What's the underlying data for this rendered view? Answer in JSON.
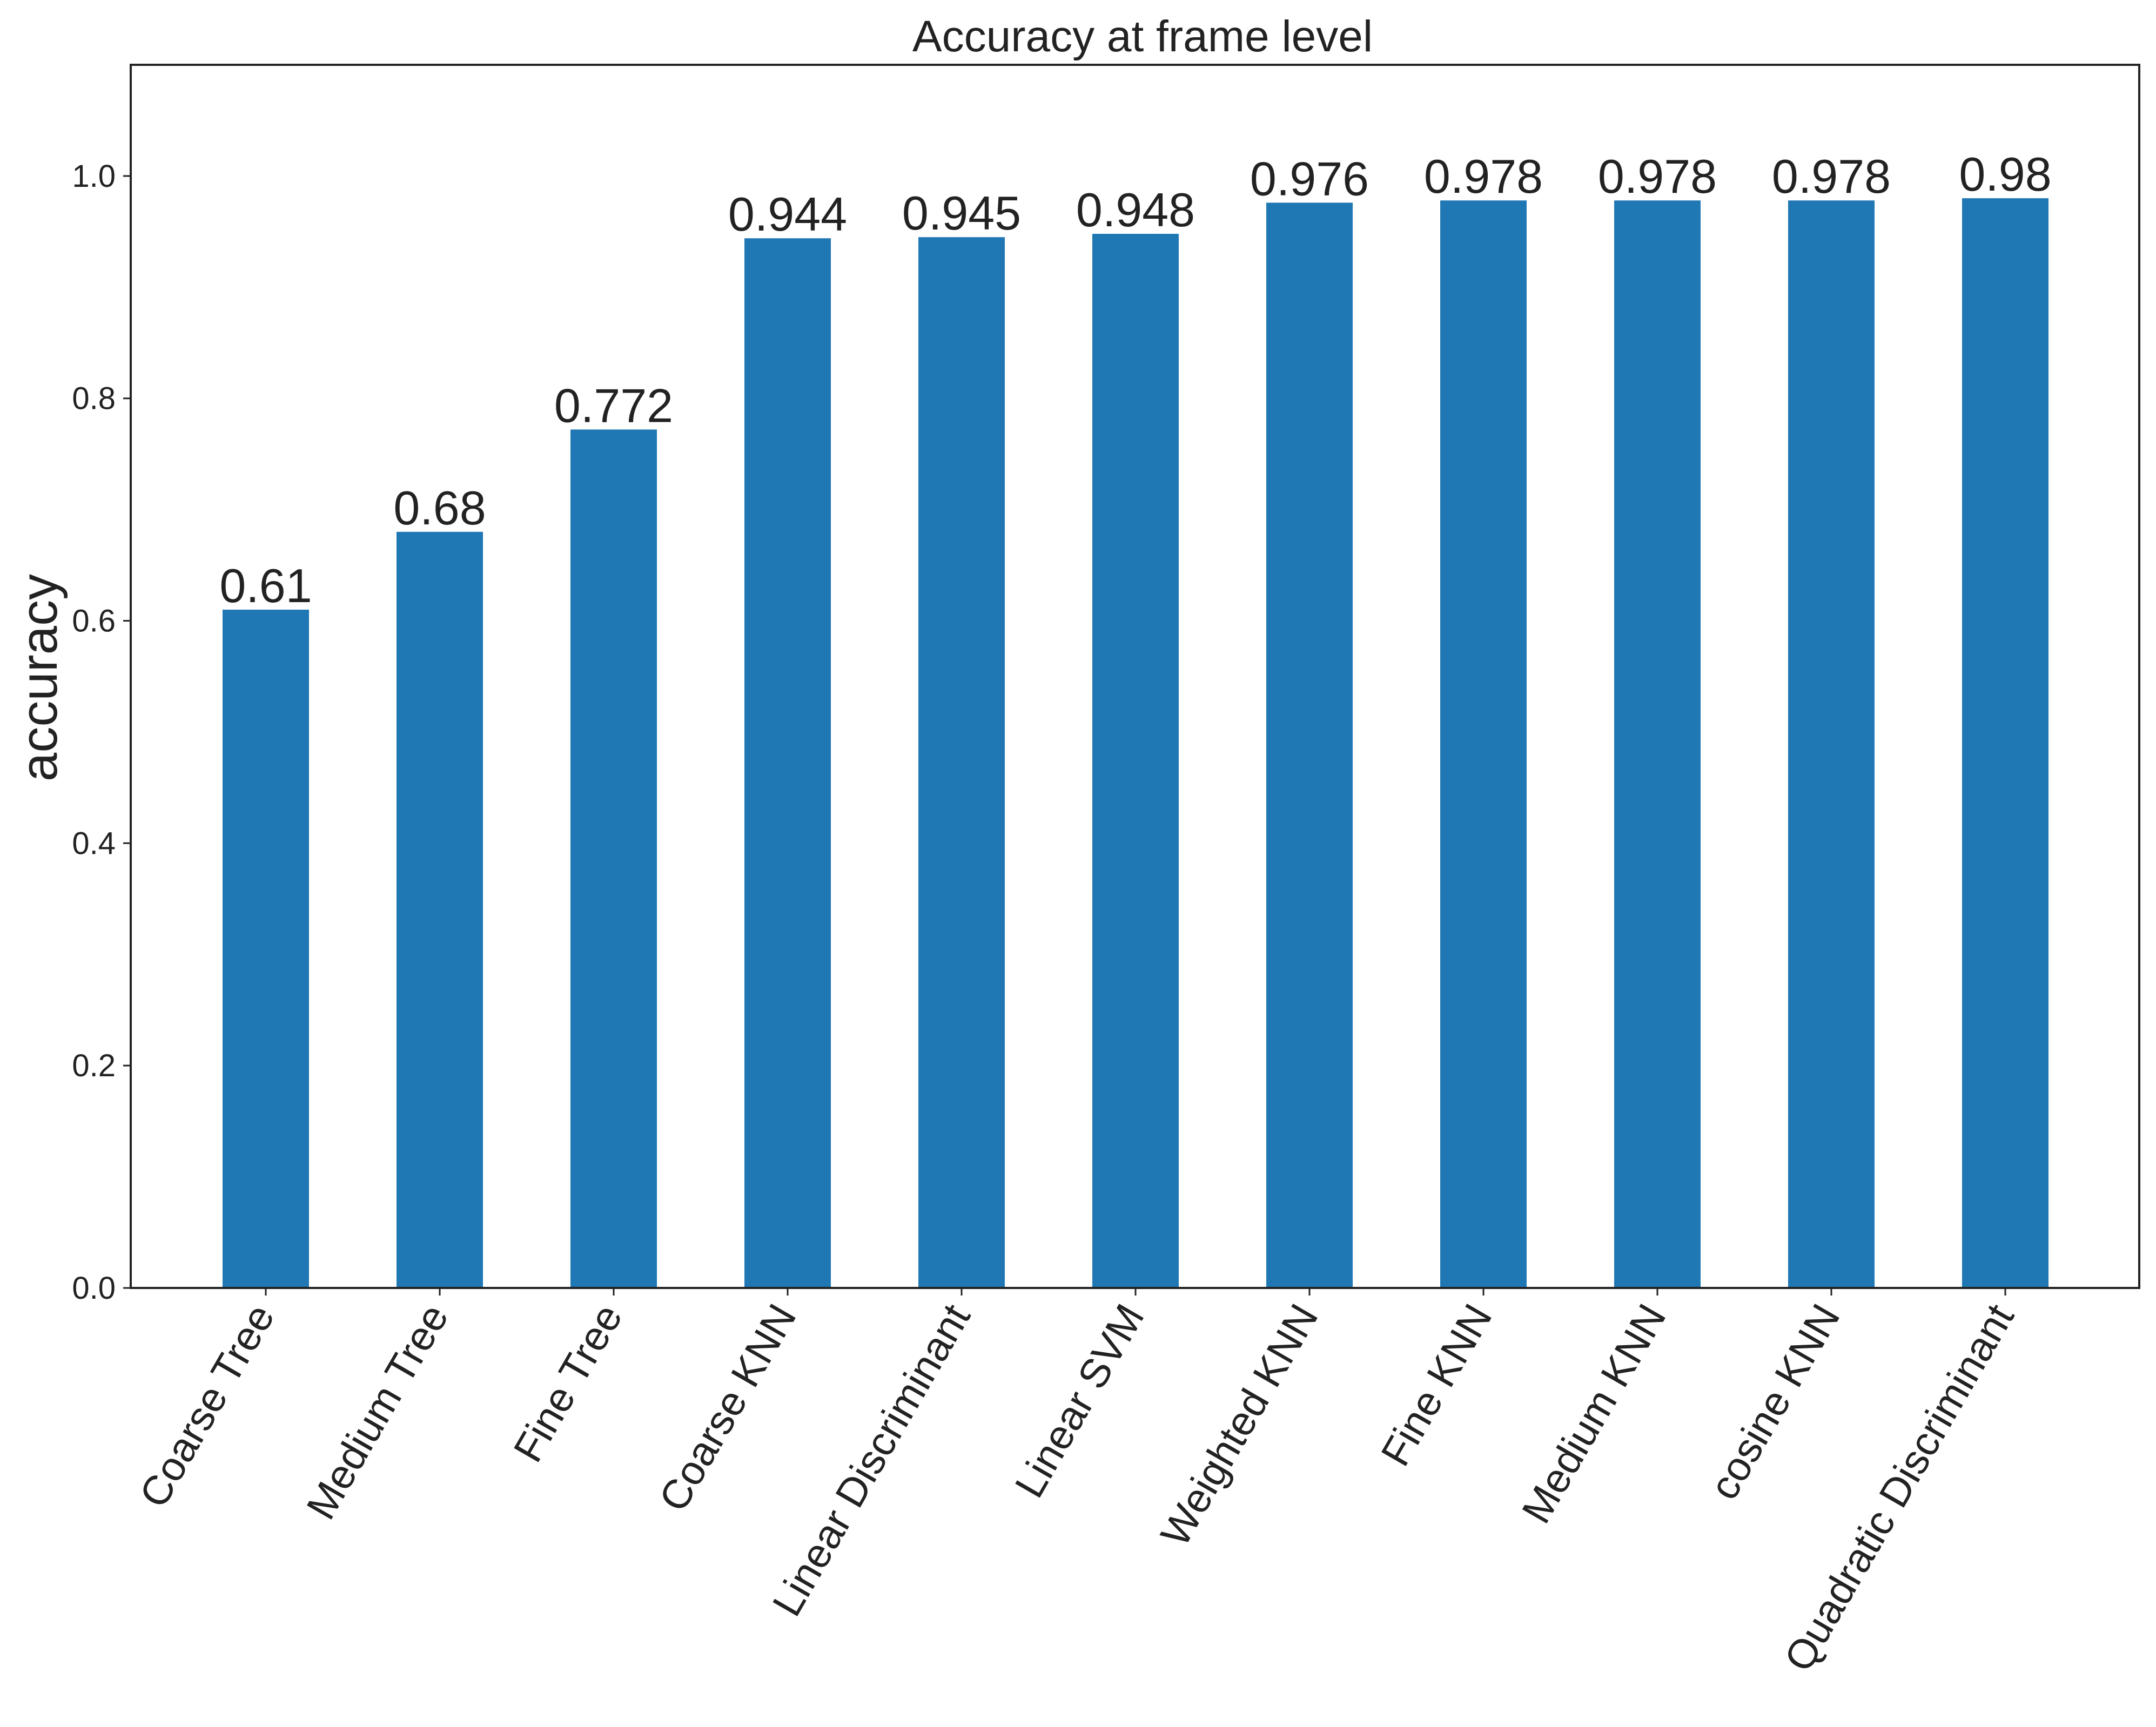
{
  "chart_data": {
    "type": "bar",
    "title": "Accuracy at frame level",
    "xlabel": "",
    "ylabel": "accuracy",
    "ylim": [
      0,
      1.1
    ],
    "yticks": [
      0.0,
      0.2,
      0.4,
      0.6,
      0.8,
      1.0
    ],
    "ytick_labels": [
      "0.0",
      "0.2",
      "0.4",
      "0.6",
      "0.8",
      "1.0"
    ],
    "grid": false,
    "legend": "none",
    "bar_color": "#1f77b4",
    "categories": [
      "Coarse Tree",
      "Medium Tree",
      "Fine Tree",
      "Coarse KNN",
      "Linear Discriminant",
      "Linear SVM",
      "Weighted KNN",
      "Fine KNN",
      "Medium KNN",
      "cosine KNN",
      "Quadratic Discriminant"
    ],
    "values": [
      0.61,
      0.68,
      0.772,
      0.944,
      0.945,
      0.948,
      0.976,
      0.978,
      0.978,
      0.978,
      0.98
    ],
    "value_labels": [
      "0.61",
      "0.68",
      "0.772",
      "0.944",
      "0.945",
      "0.948",
      "0.976",
      "0.978",
      "0.978",
      "0.978",
      "0.98"
    ]
  }
}
